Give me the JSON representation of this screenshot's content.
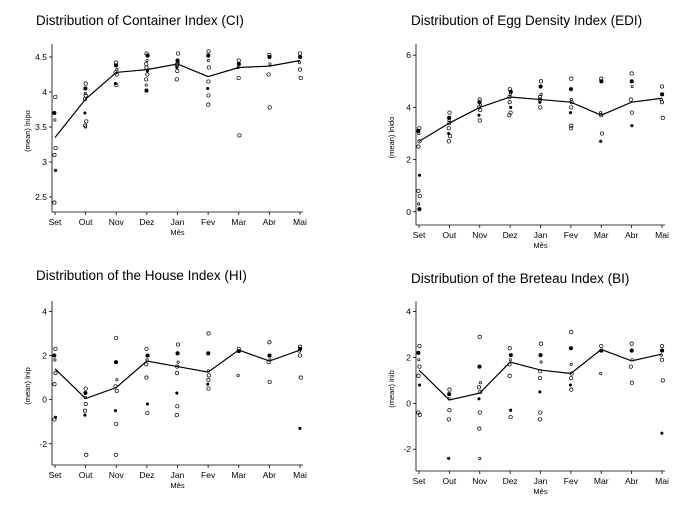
{
  "chart_data": [
    {
      "type": "scatter",
      "title": "Distribution of Container Index (CI)",
      "xlabel": "Mês",
      "ylabel": "(mean) lnipo",
      "categories": [
        "Set",
        "Out",
        "Nov",
        "Dez",
        "Jan",
        "Fev",
        "Mar",
        "Abr",
        "Mai"
      ],
      "yticks": [
        "2.5",
        "3",
        "3.5",
        "4",
        "4.5"
      ],
      "ylim": [
        2.4,
        4.6
      ],
      "mean_line": [
        3.35,
        3.9,
        4.28,
        4.32,
        4.4,
        4.22,
        4.35,
        4.37,
        4.45
      ],
      "points": [
        [
          3.93,
          3.7,
          3.6,
          3.2,
          3.1,
          2.88,
          2.42
        ],
        [
          4.12,
          4.05,
          3.98,
          3.95,
          3.9,
          3.7,
          3.58,
          3.52,
          3.5
        ],
        [
          4.42,
          4.38,
          4.32,
          4.28,
          4.25,
          4.12,
          4.1
        ],
        [
          4.55,
          4.52,
          4.45,
          4.4,
          4.35,
          4.3,
          4.25,
          4.18,
          4.1,
          4.02
        ],
        [
          4.55,
          4.45,
          4.42,
          4.4,
          4.38,
          4.35,
          4.3,
          4.18
        ],
        [
          4.58,
          4.52,
          4.45,
          4.35,
          4.15,
          4.05,
          3.95,
          3.82
        ],
        [
          4.45,
          4.4,
          4.35,
          4.2,
          3.38
        ],
        [
          4.53,
          4.5,
          4.4,
          4.25,
          3.78
        ],
        [
          4.55,
          4.5,
          4.42,
          4.32,
          4.2
        ]
      ]
    },
    {
      "type": "scatter",
      "title": "Distribution of Egg Density Index (EDI)",
      "xlabel": "Mês",
      "ylabel": "(mean) lnido",
      "categories": [
        "Set",
        "Out",
        "Nov",
        "Dez",
        "Jan",
        "Fev",
        "Mar",
        "Abr",
        "Mai"
      ],
      "yticks": [
        "0",
        "2",
        "4",
        "6"
      ],
      "ylim": [
        -0.2,
        6.2
      ],
      "mean_line": [
        2.7,
        3.4,
        4.0,
        4.4,
        4.3,
        4.2,
        3.7,
        4.2,
        4.35
      ],
      "points": [
        [
          3.2,
          3.1,
          3.0,
          2.7,
          2.5,
          1.4,
          0.8,
          0.6,
          0.3,
          0.1
        ],
        [
          3.8,
          3.6,
          3.5,
          3.4,
          3.2,
          3.0,
          2.9,
          2.7
        ],
        [
          4.3,
          4.2,
          4.1,
          4.0,
          3.9,
          3.7,
          3.5
        ],
        [
          4.7,
          4.6,
          4.5,
          4.4,
          4.2,
          4.0,
          3.8,
          3.7
        ],
        [
          5.0,
          4.8,
          4.5,
          4.4,
          4.3,
          4.2,
          4.0
        ],
        [
          5.1,
          4.7,
          4.3,
          4.2,
          4.0,
          3.8,
          3.3,
          3.2
        ],
        [
          5.1,
          5.0,
          3.8,
          3.7,
          3.0,
          2.7
        ],
        [
          5.3,
          5.0,
          4.8,
          4.3,
          3.8,
          3.3
        ],
        [
          4.8,
          4.5,
          4.3,
          4.2,
          3.6
        ]
      ]
    },
    {
      "type": "scatter",
      "title": "Distribution of the House Index (HI)",
      "xlabel": "Mês",
      "ylabel": "(mean) lnip",
      "categories": [
        "Set",
        "Out",
        "Nov",
        "Dez",
        "Jan",
        "Fev",
        "Mar",
        "Abr",
        "Mai"
      ],
      "yticks": [
        "-2",
        "0",
        "2",
        "4"
      ],
      "ylim": [
        -2.6,
        4.2
      ],
      "mean_line": [
        1.4,
        0.05,
        0.55,
        1.75,
        1.5,
        1.25,
        2.25,
        1.75,
        2.25
      ],
      "points": [
        [
          2.3,
          2.0,
          1.8,
          1.2,
          0.7,
          -0.8,
          -0.9
        ],
        [
          0.5,
          0.3,
          0.1,
          -0.2,
          -0.5,
          -0.7,
          -2.5
        ],
        [
          2.8,
          1.7,
          0.9,
          0.6,
          0.4,
          -0.5,
          -1.1,
          -2.5
        ],
        [
          2.3,
          2.0,
          1.8,
          1.6,
          1.0,
          -0.2,
          -0.6
        ],
        [
          2.5,
          2.1,
          1.7,
          1.5,
          1.2,
          0.3,
          -0.3,
          -0.7
        ],
        [
          3.0,
          2.1,
          1.3,
          1.1,
          0.9,
          0.7,
          0.5
        ],
        [
          2.3,
          2.2,
          1.1
        ],
        [
          2.6,
          2.0,
          1.8,
          1.7,
          0.8
        ],
        [
          2.4,
          2.3,
          2.2,
          2.0,
          1.0,
          -1.3
        ]
      ]
    },
    {
      "type": "scatter",
      "title": "Distribution of the Breteau Index (BI)",
      "xlabel": "Mês",
      "ylabel": "(mean) lnib",
      "categories": [
        "Set",
        "Out",
        "Nov",
        "Dez",
        "Jan",
        "Fev",
        "Mar",
        "Abr",
        "Mai"
      ],
      "yticks": [
        "-2",
        "0",
        "2",
        "4"
      ],
      "ylim": [
        -2.6,
        4.2
      ],
      "mean_line": [
        1.45,
        0.15,
        0.45,
        1.8,
        1.45,
        1.3,
        2.35,
        1.85,
        2.15
      ],
      "points": [
        [
          2.5,
          2.2,
          1.9,
          1.6,
          1.2,
          0.8,
          -0.4,
          -0.5
        ],
        [
          0.6,
          0.4,
          0.2,
          -0.3,
          -0.7,
          -2.4
        ],
        [
          2.9,
          1.6,
          0.9,
          0.7,
          0.5,
          0.2,
          -0.4,
          -1.1,
          -2.4
        ],
        [
          2.4,
          2.1,
          1.9,
          1.7,
          1.2,
          -0.3,
          -0.6
        ],
        [
          2.6,
          2.1,
          1.8,
          1.4,
          1.1,
          0.5,
          -0.4,
          -0.7
        ],
        [
          3.1,
          2.4,
          1.7,
          1.3,
          1.1,
          0.8,
          0.6
        ],
        [
          2.5,
          2.3,
          1.3
        ],
        [
          2.6,
          2.3,
          1.9,
          1.6,
          0.9
        ],
        [
          2.5,
          2.3,
          2.1,
          1.9,
          1.0,
          -1.3
        ]
      ]
    }
  ]
}
